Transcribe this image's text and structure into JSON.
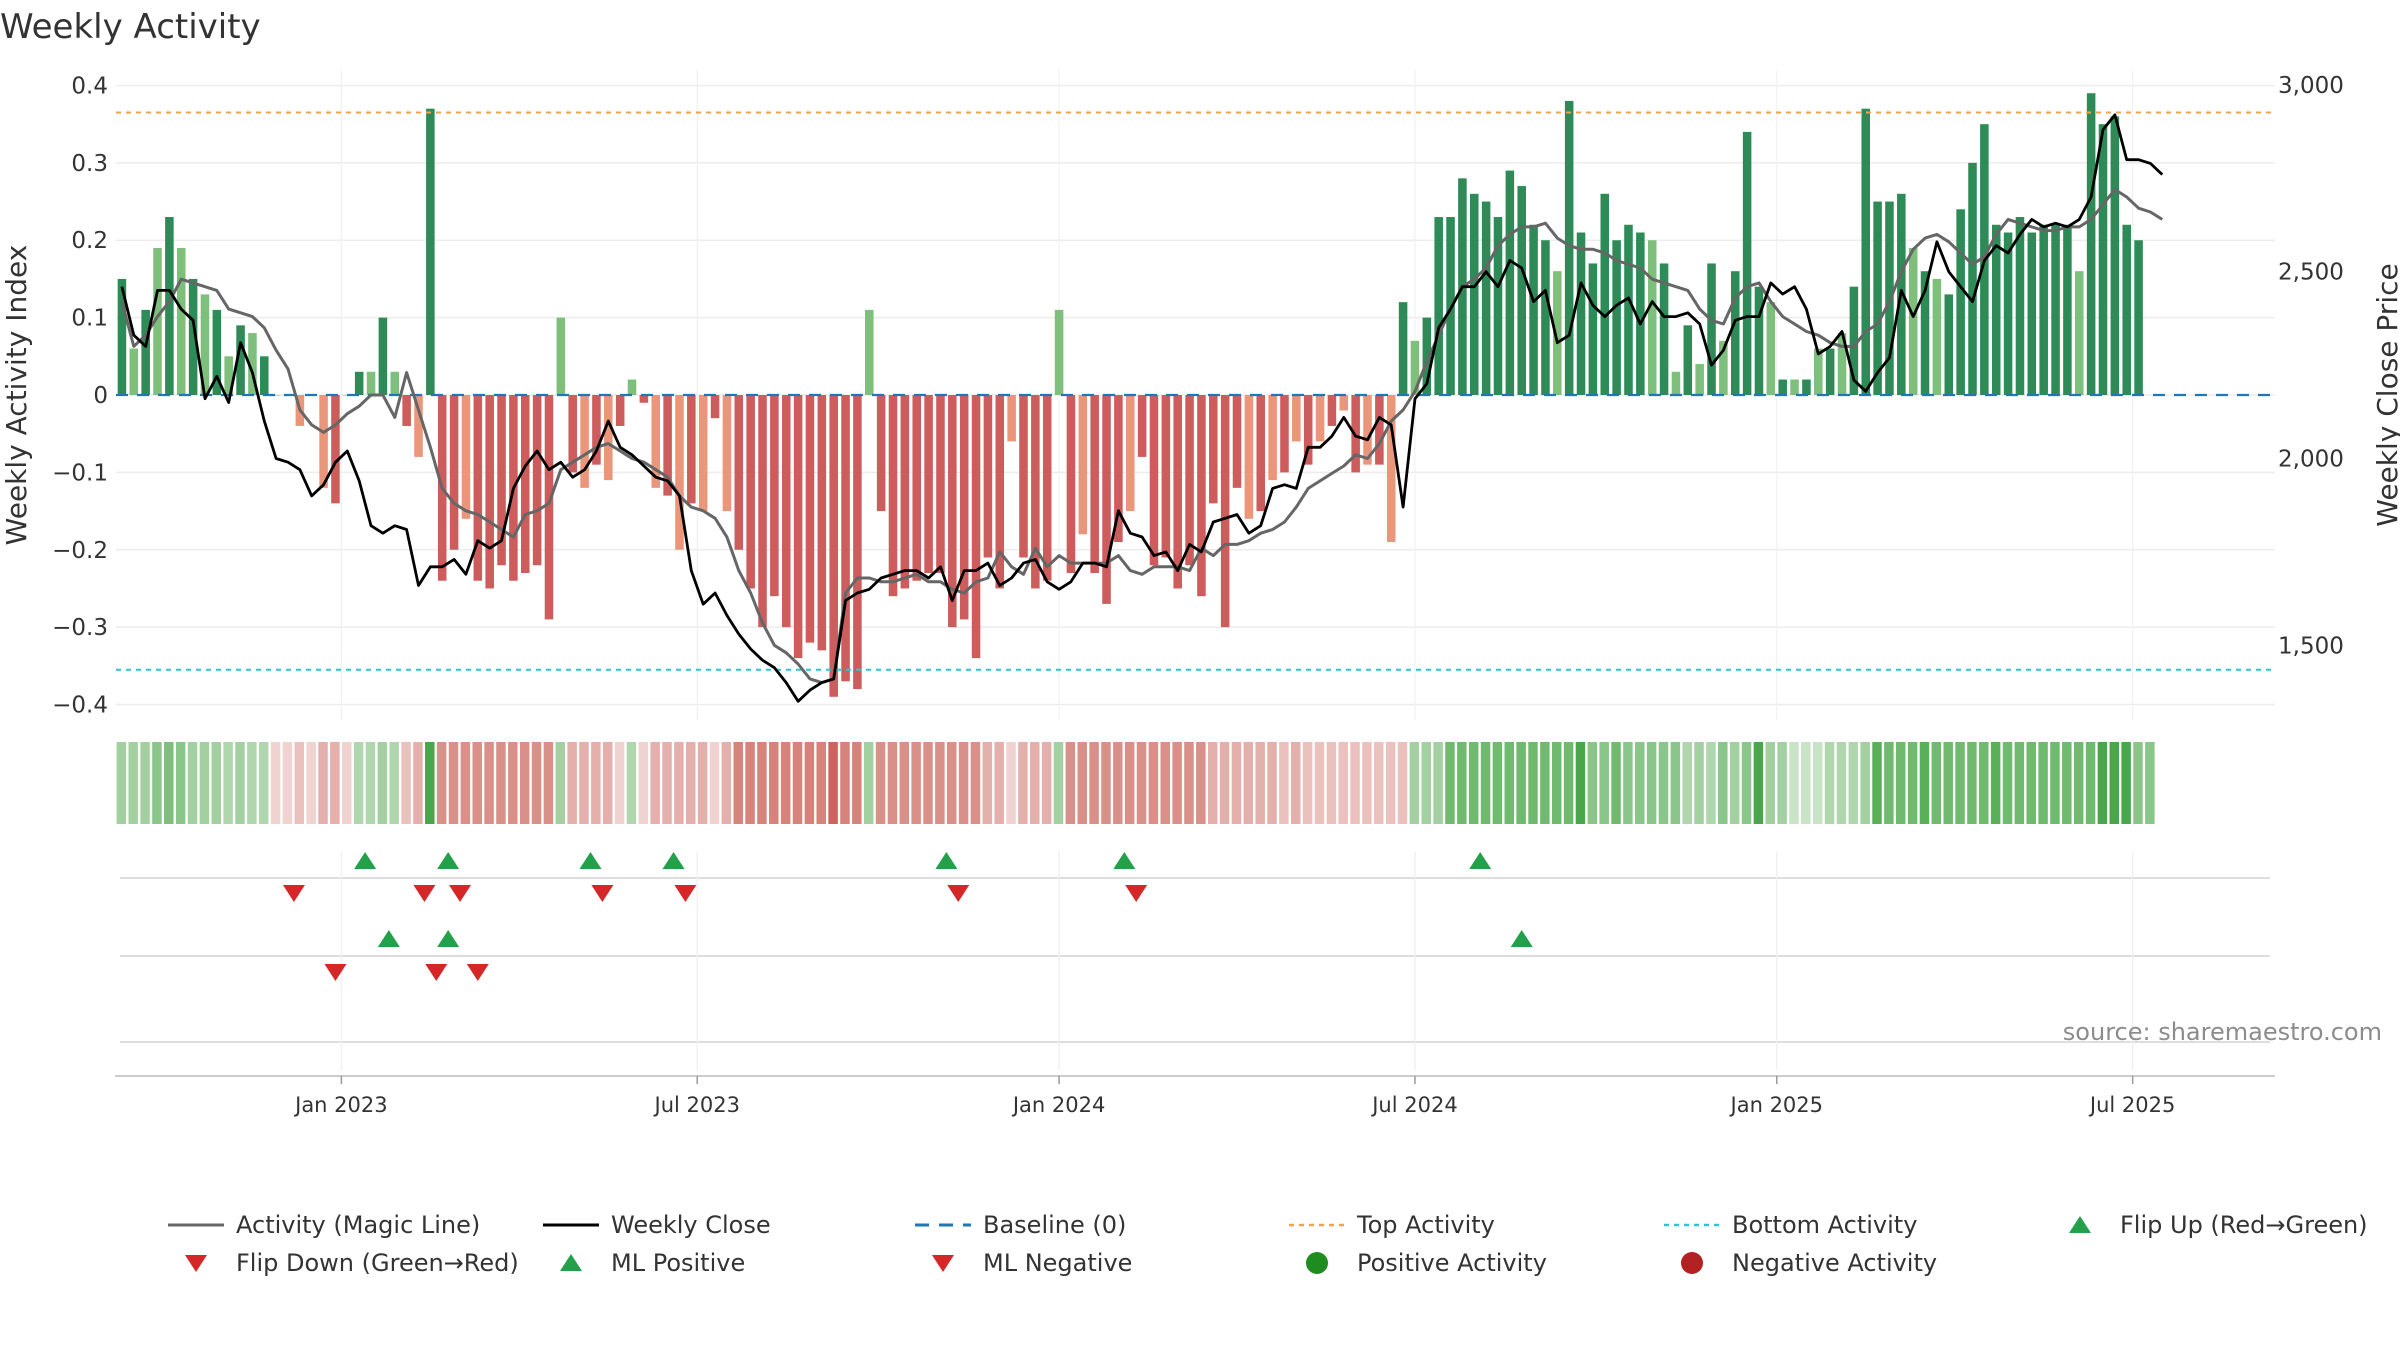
{
  "chart_data": {
    "type": "bar",
    "title": "Weekly Activity",
    "ylabel": "Weekly Activity Index",
    "y2label": "Weekly Close Price",
    "source": "source: sharemaestro.com",
    "ylim": [
      -0.42,
      0.42
    ],
    "y2lim": [
      1300,
      3040
    ],
    "yticks": [
      "0.4",
      "0.3",
      "0.2",
      "0.1",
      "0",
      "−0.1",
      "−0.2",
      "−0.3",
      "−0.4"
    ],
    "ytick_values": [
      0.4,
      0.3,
      0.2,
      0.1,
      0,
      -0.1,
      -0.2,
      -0.3,
      -0.4
    ],
    "y2ticks": [
      "3,000",
      "2,500",
      "2,000",
      "1,500"
    ],
    "y2tick_values": [
      3000,
      2500,
      2000,
      1500
    ],
    "xticks": [
      "Jan 2023",
      "Jul 2023",
      "Jan 2024",
      "Jul 2024",
      "Jan 2025",
      "Jul 2025"
    ],
    "xtick_weeks": [
      19,
      49,
      79.5,
      109.5,
      140,
      170
    ],
    "weeks_total": 182,
    "top_activity": 0.365,
    "bottom_activity": -0.355,
    "activity": [
      0.15,
      0.06,
      0.11,
      0.19,
      0.23,
      0.19,
      0.15,
      0.13,
      0.11,
      0.05,
      0.09,
      0.08,
      0.05,
      0,
      0,
      -0.04,
      0,
      -0.12,
      -0.14,
      0,
      0.03,
      0.03,
      0.1,
      0.03,
      -0.04,
      -0.08,
      0.37,
      -0.24,
      -0.2,
      -0.16,
      -0.24,
      -0.25,
      -0.22,
      -0.24,
      -0.23,
      -0.22,
      -0.29,
      0.1,
      -0.1,
      -0.12,
      -0.09,
      -0.11,
      -0.04,
      0.02,
      -0.01,
      -0.12,
      -0.13,
      -0.2,
      -0.14,
      -0.15,
      -0.03,
      -0.15,
      -0.2,
      -0.25,
      -0.3,
      -0.26,
      -0.3,
      -0.34,
      -0.32,
      -0.33,
      -0.39,
      -0.37,
      -0.38,
      0.11,
      -0.15,
      -0.26,
      -0.25,
      -0.24,
      -0.23,
      -0.23,
      -0.3,
      -0.29,
      -0.34,
      -0.21,
      -0.25,
      -0.06,
      -0.21,
      -0.25,
      -0.24,
      0.11,
      -0.23,
      -0.18,
      -0.23,
      -0.27,
      -0.19,
      -0.15,
      -0.08,
      -0.22,
      -0.21,
      -0.25,
      -0.22,
      -0.26,
      -0.14,
      -0.3,
      -0.12,
      -0.16,
      -0.15,
      -0.11,
      -0.1,
      -0.06,
      -0.09,
      -0.06,
      -0.04,
      -0.02,
      -0.1,
      -0.09,
      -0.09,
      -0.19,
      0.12,
      0.07,
      0.1,
      0.23,
      0.23,
      0.28,
      0.26,
      0.25,
      0.23,
      0.29,
      0.27,
      0.22,
      0.2,
      0.16,
      0.38,
      0.21,
      0.17,
      0.26,
      0.2,
      0.22,
      0.21,
      0.2,
      0.17,
      0.03,
      0.09,
      0.04,
      0.17,
      0.07,
      0.16,
      0.34,
      0.14,
      0.12,
      0.02,
      0.02,
      0.02,
      0.06,
      0.06,
      0.08,
      0.14,
      0.37,
      0.25,
      0.25,
      0.26,
      0.19,
      0.16,
      0.15,
      0.13,
      0.24,
      0.3,
      0.35,
      0.22,
      0.21,
      0.23,
      0.21,
      0.22,
      0.22,
      0.22,
      0.16,
      0.39,
      0.35,
      0.36,
      0.22,
      0.2
    ],
    "weekly_close": [
      2460,
      2330,
      2300,
      2450,
      2450,
      2400,
      2370,
      2160,
      2220,
      2150,
      2310,
      2230,
      2100,
      2000,
      1990,
      1970,
      1900,
      1930,
      1990,
      2020,
      1940,
      1820,
      1800,
      1820,
      1810,
      1660,
      1710,
      1710,
      1730,
      1690,
      1780,
      1760,
      1780,
      1920,
      1980,
      2020,
      1970,
      1990,
      1950,
      1970,
      2020,
      2100,
      2030,
      2010,
      1980,
      1950,
      1940,
      1900,
      1700,
      1610,
      1640,
      1580,
      1530,
      1490,
      1460,
      1440,
      1400,
      1350,
      1380,
      1400,
      1410,
      1620,
      1640,
      1650,
      1680,
      1690,
      1700,
      1700,
      1680,
      1710,
      1620,
      1700,
      1700,
      1720,
      1660,
      1680,
      1720,
      1730,
      1670,
      1650,
      1670,
      1720,
      1720,
      1710,
      1860,
      1800,
      1790,
      1740,
      1750,
      1700,
      1770,
      1750,
      1830,
      1840,
      1850,
      1800,
      1820,
      1920,
      1930,
      1920,
      2030,
      2030,
      2060,
      2110,
      2060,
      2050,
      2110,
      2090,
      1870,
      2160,
      2200,
      2350,
      2400,
      2460,
      2460,
      2500,
      2460,
      2530,
      2510,
      2420,
      2450,
      2310,
      2330,
      2470,
      2410,
      2380,
      2410,
      2430,
      2360,
      2420,
      2380,
      2380,
      2390,
      2360,
      2250,
      2290,
      2370,
      2380,
      2380,
      2470,
      2440,
      2460,
      2400,
      2280,
      2300,
      2340,
      2210,
      2180,
      2230,
      2270,
      2450,
      2380,
      2450,
      2580,
      2500,
      2460,
      2420,
      2530,
      2570,
      2550,
      2600,
      2640,
      2620,
      2630,
      2620,
      2640,
      2700,
      2880,
      2920,
      2800,
      2800,
      2790,
      2760
    ],
    "magic_line": [
      2420,
      2300,
      2330,
      2380,
      2420,
      2480,
      2470,
      2460,
      2450,
      2400,
      2390,
      2380,
      2350,
      2290,
      2240,
      2130,
      2090,
      2070,
      2090,
      2120,
      2140,
      2170,
      2170,
      2110,
      2230,
      2130,
      2030,
      1920,
      1880,
      1860,
      1850,
      1830,
      1810,
      1790,
      1850,
      1860,
      1880,
      1970,
      1990,
      2010,
      2030,
      2040,
      2020,
      2000,
      1990,
      1970,
      1950,
      1900,
      1870,
      1860,
      1840,
      1790,
      1700,
      1640,
      1560,
      1500,
      1480,
      1450,
      1410,
      1400,
      1410,
      1640,
      1680,
      1680,
      1670,
      1670,
      1680,
      1690,
      1670,
      1670,
      1650,
      1640,
      1670,
      1680,
      1750,
      1710,
      1690,
      1760,
      1710,
      1740,
      1720,
      1720,
      1720,
      1720,
      1740,
      1700,
      1690,
      1710,
      1710,
      1710,
      1700,
      1760,
      1740,
      1770,
      1770,
      1780,
      1800,
      1810,
      1830,
      1870,
      1920,
      1940,
      1960,
      1980,
      2010,
      2000,
      2040,
      2100,
      2130,
      2180,
      2260,
      2330,
      2400,
      2460,
      2480,
      2510,
      2570,
      2600,
      2620,
      2620,
      2630,
      2590,
      2570,
      2560,
      2560,
      2550,
      2530,
      2520,
      2510,
      2480,
      2470,
      2460,
      2450,
      2400,
      2370,
      2360,
      2430,
      2460,
      2470,
      2420,
      2380,
      2360,
      2340,
      2330,
      2310,
      2300,
      2300,
      2340,
      2360,
      2420,
      2500,
      2560,
      2590,
      2600,
      2580,
      2550,
      2520,
      2540,
      2600,
      2640,
      2630,
      2620,
      2610,
      2610,
      2620,
      2620,
      2640,
      2680,
      2720,
      2700,
      2670,
      2660,
      2640
    ],
    "heat_colors": [
      "#a3d0a1",
      "#a3d0a1",
      "#a3d0a1",
      "#8ac689",
      "#7ebf7e",
      "#8ac689",
      "#a3d0a1",
      "#a3d0a1",
      "#a3d0a1",
      "#b0d6ad",
      "#a3d0a1",
      "#b0d6ad",
      "#b0d6ad",
      "#f0d2d0",
      "#f0d2d0",
      "#eac1bd",
      "#f0d2d0",
      "#e4b0ab",
      "#e4b0ab",
      "#f0d2d0",
      "#b0d6ad",
      "#b0d6ad",
      "#a3d0a1",
      "#b0d6ad",
      "#eac1bd",
      "#e4b0ab",
      "#4aa64a",
      "#d89089",
      "#d89089",
      "#d89089",
      "#d89089",
      "#d89089",
      "#d89089",
      "#d89089",
      "#d89089",
      "#d89089",
      "#d89089",
      "#a3d0a1",
      "#e4b0ab",
      "#e4b0ab",
      "#e4b0ab",
      "#e4b0ab",
      "#f0d2d0",
      "#b0d6ad",
      "#f0d2d0",
      "#e4b0ab",
      "#e4b0ab",
      "#e4b0ab",
      "#e4b0ab",
      "#e4b0ab",
      "#f0d2d0",
      "#e4b0ab",
      "#d6837b",
      "#d6837b",
      "#d6837b",
      "#d6837b",
      "#d6837b",
      "#d6837b",
      "#d6837b",
      "#d6837b",
      "#c9655d",
      "#d6837b",
      "#d6837b",
      "#a3d0a1",
      "#d89089",
      "#d89089",
      "#d89089",
      "#d89089",
      "#d89089",
      "#d89089",
      "#d89089",
      "#d89089",
      "#d89089",
      "#e4b0ab",
      "#e4b0ab",
      "#f0d2d0",
      "#e4b0ab",
      "#e4b0ab",
      "#e4b0ab",
      "#a3d0a1",
      "#d89089",
      "#d89089",
      "#d89089",
      "#d89089",
      "#d89089",
      "#d89089",
      "#d89089",
      "#d89089",
      "#d89089",
      "#d89089",
      "#d89089",
      "#d89089",
      "#e4b0ab",
      "#e4b0ab",
      "#e4b0ab",
      "#e4b0ab",
      "#e4b0ab",
      "#e4b0ab",
      "#eac1bd",
      "#e4b0ab",
      "#eac1bd",
      "#eac1bd",
      "#eac1bd",
      "#eac1bd",
      "#eac1bd",
      "#eac1bd",
      "#eac1bd",
      "#eac1bd",
      "#eac1bd",
      "#a3d0a1",
      "#a3d0a1",
      "#a3d0a1",
      "#6fba6e",
      "#6fba6e",
      "#6fba6e",
      "#6fba6e",
      "#6fba6e",
      "#6fba6e",
      "#6fba6e",
      "#6fba6e",
      "#6fba6e",
      "#6fba6e",
      "#6fba6e",
      "#4aa64a",
      "#8ac689",
      "#8ac689",
      "#6fba6e",
      "#8ac689",
      "#8ac689",
      "#8ac689",
      "#8ac689",
      "#8ac689",
      "#b0d6ad",
      "#a3d0a1",
      "#b0d6ad",
      "#8ac689",
      "#a3d0a1",
      "#8ac689",
      "#4aa64a",
      "#a3d0a1",
      "#a3d0a1",
      "#c8e3c5",
      "#c8e3c5",
      "#c8e3c5",
      "#b0d6ad",
      "#b0d6ad",
      "#b0d6ad",
      "#a3d0a1",
      "#5aaf59",
      "#6fba6e",
      "#6fba6e",
      "#6fba6e",
      "#5aaf59",
      "#6fba6e",
      "#6fba6e",
      "#6fba6e",
      "#6fba6e",
      "#6fba6e",
      "#5aaf59",
      "#6fba6e",
      "#6fba6e",
      "#6fba6e",
      "#6fba6e",
      "#6fba6e",
      "#6fba6e",
      "#6fba6e",
      "#6fba6e",
      "#4aa64a",
      "#4aa64a",
      "#4aa64a",
      "#8ac689",
      "#8ac689"
    ],
    "flip_up": [
      21,
      28,
      40,
      47,
      70,
      85,
      115
    ],
    "flip_down": [
      15,
      26,
      29,
      41,
      48,
      71,
      86
    ],
    "ml_positive": [
      23,
      28,
      118.5
    ],
    "ml_negative": [
      18.5,
      27,
      30.5
    ],
    "colors": {
      "pos_strong": "#2e8b57",
      "pos_light": "#7dbf7b",
      "neg_strong": "#cd5c5c",
      "neg_light": "#e9967a",
      "magic_line": "#666666",
      "weekly_close": "#000000",
      "baseline": "#1f77b4",
      "top": "#f0a34e",
      "bottom": "#2ec4d6",
      "flip_up": "#22a04a",
      "flip_down": "#d62728",
      "positive_activity": "#1e8c1e",
      "negative_activity": "#b22222"
    },
    "legend": [
      "Activity (Magic Line)",
      "Weekly Close",
      "Baseline (0)",
      "Top Activity",
      "Bottom Activity",
      "Flip Up (Red→Green)",
      "Flip Down (Green→Red)",
      "ML Positive",
      "ML Negative",
      "Positive Activity",
      "Negative Activity"
    ]
  }
}
